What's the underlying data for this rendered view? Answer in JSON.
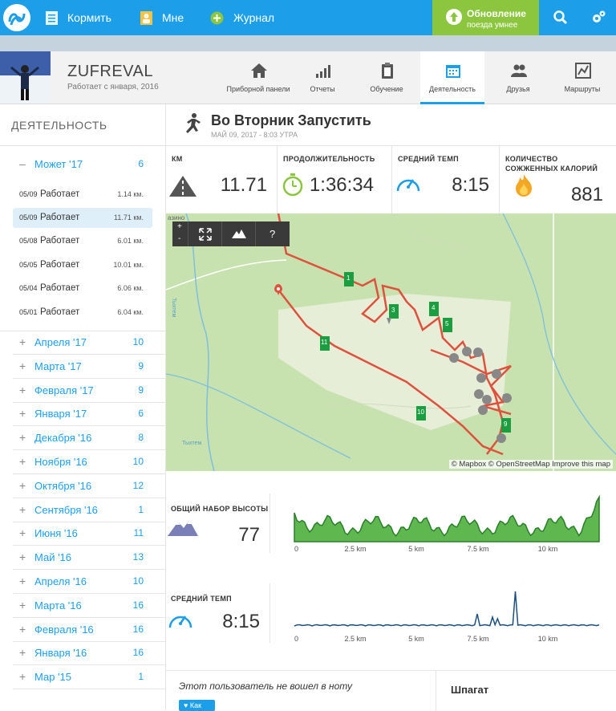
{
  "topbar": {
    "items": [
      {
        "label": "Кормить",
        "icon": "feed-icon"
      },
      {
        "label": "Мне",
        "icon": "user-icon"
      },
      {
        "label": "Журнал",
        "icon": "plus-circle-icon"
      }
    ],
    "update_title": "Обновление",
    "update_sub": "поезда умнее"
  },
  "profile": {
    "username": "ZUFREVAL",
    "since": "Работает с января, 2016",
    "tabs": [
      {
        "label": "Приборной панели",
        "icon": "home-icon"
      },
      {
        "label": "Отчеты",
        "icon": "bars-icon"
      },
      {
        "label": "Обучение",
        "icon": "clipboard-icon"
      },
      {
        "label": "Деятельность",
        "icon": "calendar-icon",
        "active": true
      },
      {
        "label": "Друзья",
        "icon": "friends-icon"
      },
      {
        "label": "Маршруты",
        "icon": "routes-icon"
      }
    ]
  },
  "sidebar": {
    "title": "ДЕЯТЕЛЬНОСТЬ",
    "open_month": {
      "name": "Может '17",
      "count": "6",
      "sign": "–"
    },
    "activities": [
      {
        "date": "05/09",
        "name": "Работает",
        "km": "1.14 км."
      },
      {
        "date": "05/09",
        "name": "Работает",
        "km": "11.71 км.",
        "selected": true
      },
      {
        "date": "05/08",
        "name": "Работает",
        "km": "6.01 км."
      },
      {
        "date": "05/05",
        "name": "Работает",
        "km": "10.01 км."
      },
      {
        "date": "05/04",
        "name": "Работает",
        "km": "6.06 км."
      },
      {
        "date": "05/01",
        "name": "Работает",
        "km": "6.04 км."
      }
    ],
    "months": [
      {
        "name": "Апреля '17",
        "count": "10"
      },
      {
        "name": "Марта '17",
        "count": "9"
      },
      {
        "name": "Февраля '17",
        "count": "9"
      },
      {
        "name": "Января '17",
        "count": "6"
      },
      {
        "name": "Декабря '16",
        "count": "8"
      },
      {
        "name": "Ноября '16",
        "count": "10"
      },
      {
        "name": "Октября '16",
        "count": "12"
      },
      {
        "name": "Сентября '16",
        "count": "1"
      },
      {
        "name": "Июня '16",
        "count": "11"
      },
      {
        "name": "Май '16",
        "count": "13"
      },
      {
        "name": "Апреля '16",
        "count": "10"
      },
      {
        "name": "Марта '16",
        "count": "16"
      },
      {
        "name": "Февраля '16",
        "count": "16"
      },
      {
        "name": "Января '16",
        "count": "16"
      },
      {
        "name": "Мар '15",
        "count": "1"
      }
    ]
  },
  "activity": {
    "title": "Во Вторник Запустить",
    "date": "МАЙ 09, 2017 - 8:03 УТРА",
    "stats": [
      {
        "label": "КМ",
        "value": "11.71",
        "icon": "distance-icon"
      },
      {
        "label": "ПРОДОЛЖИТЕЛЬНОСТЬ",
        "value": "1:36:34",
        "icon": "stopwatch-icon"
      },
      {
        "label": "СРЕДНИЙ ТЕМП",
        "value": "8:15",
        "icon": "speedometer-icon"
      },
      {
        "label": "КОЛИЧЕСТВО СОЖЖЕННЫХ КАЛОРИЙ",
        "label_line1": "КОЛИЧЕСТВО",
        "label_line2": "СОЖЖЕННЫХ КАЛОРИЙ",
        "value": "881",
        "icon": "flame-icon"
      }
    ],
    "map": {
      "attribution": "© Mapbox © OpenStreetMap Improve this map",
      "controls": [
        "+",
        "-",
        "⤢",
        "▲",
        "?"
      ],
      "labels": [
        "азино",
        "Тыхтем",
        "Тыхтем"
      ],
      "km_markers": [
        "1",
        "3",
        "4",
        "5",
        "9",
        "10",
        "11"
      ],
      "route_color": "#e0503c"
    },
    "elevation": {
      "label": "ОБЩИЙ НАБОР ВЫСОТЫ",
      "value": "77"
    },
    "pace": {
      "label": "СРЕДНИЙ ТЕМП",
      "value": "8:15"
    },
    "x_ticks": [
      "0",
      "2.5 km",
      "5 km",
      "7.5 km",
      "10 km"
    ],
    "note": "Этот пользователь не вошел в ноту",
    "like_label": "Как",
    "shoes_label": "Шпагат"
  },
  "colors": {
    "primary": "#1d9ee8",
    "update": "#8cc63f",
    "elevation": "#5fb84f",
    "pace": "#1c4f7c",
    "route": "#e0503c"
  }
}
